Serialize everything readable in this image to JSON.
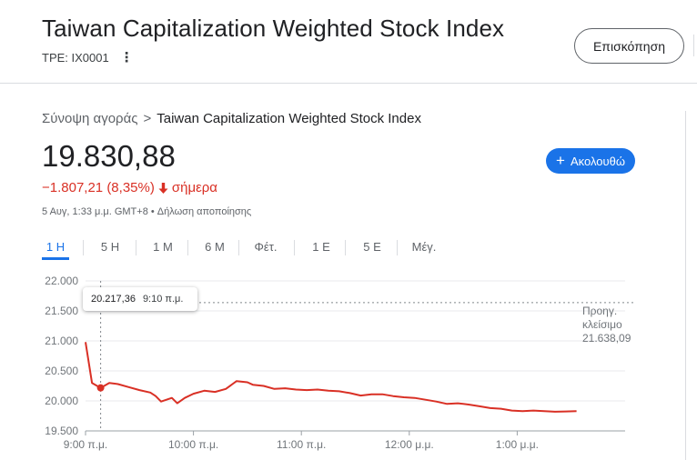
{
  "header": {
    "title": "Taiwan Capitalization Weighted Stock Index",
    "ticker": "TPE: IX0001",
    "more_icon": "more-vert-icon",
    "overview_button": "Επισκόπηση"
  },
  "breadcrumb": {
    "parent": "Σύνοψη αγοράς",
    "separator": ">",
    "current": "Taiwan Capitalization Weighted Stock Index"
  },
  "quote": {
    "price": "19.830,88",
    "change": "−1.807,21 (8,35%)",
    "change_suffix": "σήμερα",
    "change_icon": "arrow-down-icon",
    "change_color": "#d93025",
    "timestamp": "5 Αυγ, 1:33 μ.μ. GMT+8 • Δήλωση αποποίησης"
  },
  "follow_button": {
    "icon": "plus-icon",
    "label": "Ακολουθώ"
  },
  "tabs": [
    "1 Η",
    "5 Η",
    "1 Μ",
    "6 Μ",
    "Φέτ.",
    "1 Ε",
    "5 Ε",
    "Μέγ."
  ],
  "active_tab": 0,
  "accent_color": "#1a73e8",
  "tooltip": {
    "value": "20.217,36",
    "time": "9:10 π.μ."
  },
  "chart_data": {
    "type": "line",
    "x_unit": "time (hours after 9:00 π.μ.)",
    "x": [
      0.0,
      0.06,
      0.14,
      0.22,
      0.3,
      0.4,
      0.5,
      0.6,
      0.65,
      0.7,
      0.8,
      0.85,
      0.92,
      1.0,
      1.1,
      1.2,
      1.3,
      1.4,
      1.5,
      1.55,
      1.65,
      1.75,
      1.85,
      1.95,
      2.05,
      2.15,
      2.25,
      2.35,
      2.45,
      2.55,
      2.65,
      2.75,
      2.85,
      2.95,
      3.05,
      3.15,
      3.25,
      3.35,
      3.45,
      3.55,
      3.65,
      3.75,
      3.85,
      3.95,
      4.05,
      4.15,
      4.25,
      4.35,
      4.45,
      4.55
    ],
    "values": [
      20980,
      20300,
      20217,
      20300,
      20280,
      20230,
      20180,
      20140,
      20080,
      19990,
      20050,
      19960,
      20050,
      20120,
      20170,
      20150,
      20200,
      20330,
      20310,
      20270,
      20250,
      20200,
      20210,
      20190,
      20180,
      20190,
      20170,
      20160,
      20130,
      20090,
      20110,
      20110,
      20080,
      20060,
      20050,
      20020,
      19990,
      19950,
      19960,
      19940,
      19910,
      19880,
      19870,
      19840,
      19830,
      19840,
      19830,
      19820,
      19825,
      19831
    ],
    "series_color": "#d93025",
    "y_ticks": [
      "22.000",
      "21.500",
      "21.000",
      "20.500",
      "20.000",
      "19.500"
    ],
    "y_tick_values": [
      22000,
      21500,
      21000,
      20500,
      20000,
      19500
    ],
    "ylim": [
      19500,
      22000
    ],
    "x_ticks": [
      "9:00 π.μ.",
      "10:00 π.μ.",
      "11:00 π.μ.",
      "12:00 μ.μ.",
      "1:00 μ.μ."
    ],
    "x_tick_values": [
      0,
      1,
      2,
      3,
      4
    ],
    "x_range": [
      0,
      5
    ],
    "previous_close": 21638.09,
    "previous_close_label": [
      "Προηγ.",
      "κλείσιμο",
      "21.638,09"
    ],
    "hover_x": 0.14,
    "hover_value": 20217.36,
    "grid": true
  }
}
